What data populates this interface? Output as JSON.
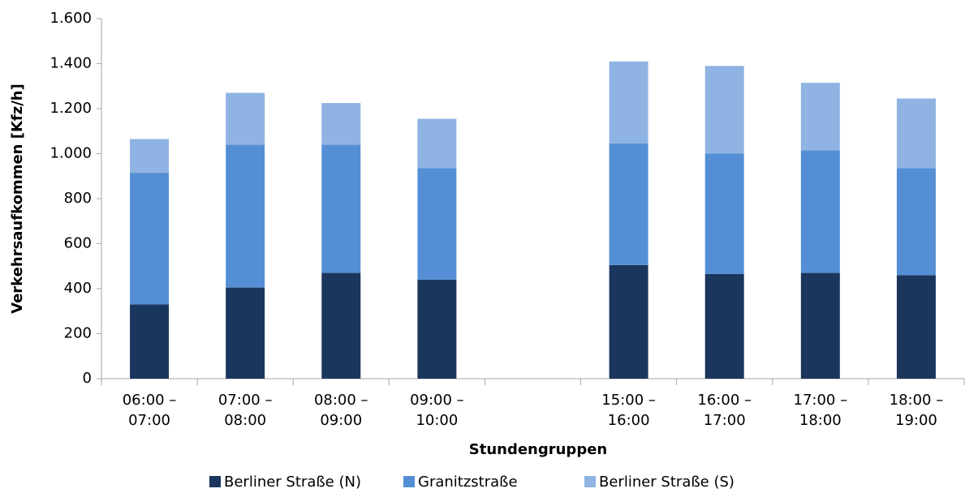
{
  "chart_data": {
    "type": "stacked_bar",
    "x_label": "Stundengruppen",
    "y_label": "Verkehrsaufkommen [Kfz/h]",
    "categories": [
      "06:00 – 07:00",
      "07:00 – 08:00",
      "08:00 – 09:00",
      "09:00 – 10:00",
      null,
      "15:00 – 16:00",
      "16:00 – 17:00",
      "17:00 – 18:00",
      "18:00 – 19:00"
    ],
    "series": [
      {
        "name": "Berliner Straße (N)",
        "color": "#1b365d",
        "values": [
          330,
          405,
          470,
          440,
          null,
          505,
          465,
          470,
          460
        ]
      },
      {
        "name": "Granitzstraße",
        "color": "#548fd5",
        "values": [
          585,
          635,
          570,
          495,
          null,
          540,
          535,
          545,
          475
        ]
      },
      {
        "name": "Berliner Straße (S)",
        "color": "#8fb4e3",
        "values": [
          150,
          230,
          185,
          220,
          null,
          365,
          390,
          300,
          310
        ]
      }
    ],
    "ylim": [
      0,
      1600
    ],
    "yticks": [
      0,
      200,
      400,
      600,
      800,
      {
        "value": 1000,
        "label": "1.000"
      },
      {
        "value": 1200,
        "label": "1.200"
      },
      {
        "value": 1400,
        "label": "1.400"
      },
      {
        "value": 1600,
        "label": "1.600"
      }
    ],
    "grid": false,
    "legend": "bottom"
  }
}
